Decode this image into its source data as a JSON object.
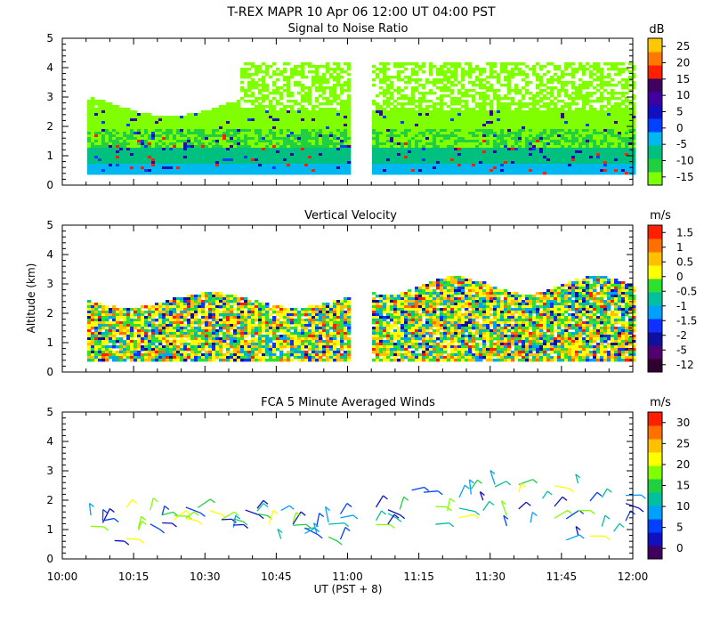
{
  "figure": {
    "title": "T-REX  MAPR 10 Apr 06   12:00 UT  04:00   PST",
    "x_axis_label": "UT  (PST + 8)",
    "y_axis_label": "Altitude (km)",
    "x_tick_labels": [
      "10:00",
      "10:15",
      "10:30",
      "10:45",
      "11:00",
      "11:15",
      "11:30",
      "11:45",
      "12:00"
    ],
    "y_tick_labels": [
      "0",
      "1",
      "2",
      "3",
      "4",
      "5"
    ]
  },
  "chart_data": [
    {
      "type": "heatmap",
      "title": "Signal to Noise Ratio",
      "unit": "dB",
      "xlim": [
        "10:00",
        "12:00"
      ],
      "ylim": [
        0,
        5
      ],
      "data_gap": [
        "11:00",
        "11:05"
      ],
      "colorbar": {
        "colors": [
          "#80ff00",
          "#20d040",
          "#00c080",
          "#00b8f0",
          "#0040ff",
          "#1010c0",
          "#4000a0",
          "#400060",
          "#ff2000",
          "#ff7800",
          "#ffc800"
        ],
        "labels": [
          "-15",
          "-10",
          "-5",
          "0",
          "5",
          "10",
          "15",
          "20",
          "25"
        ]
      }
    },
    {
      "type": "heatmap",
      "title": "Vertical Velocity",
      "unit": "m/s",
      "xlim": [
        "10:00",
        "12:00"
      ],
      "ylim": [
        0,
        5
      ],
      "data_gap": [
        "11:00",
        "11:05"
      ],
      "colorbar": {
        "colors": [
          "#300030",
          "#500070",
          "#1010a0",
          "#1030ff",
          "#00a0ff",
          "#00c0a0",
          "#30e030",
          "#ffff00",
          "#ffc000",
          "#ff7000",
          "#ff2000"
        ],
        "labels": [
          "-12",
          "-5",
          "-2",
          "-1.5",
          "-1",
          "-0.5",
          "0",
          "0.5",
          "1",
          "1.5"
        ]
      }
    },
    {
      "type": "scatter",
      "title": "FCA 5 Minute Averaged Winds",
      "unit": "m/s",
      "xlim": [
        "10:00",
        "12:00"
      ],
      "ylim": [
        0,
        5
      ],
      "colorbar": {
        "colors": [
          "#400060",
          "#1010c0",
          "#0040ff",
          "#00a0ff",
          "#00c0a0",
          "#20d040",
          "#80ff00",
          "#ffff00",
          "#ffc000",
          "#ff7000",
          "#ff2000"
        ],
        "labels": [
          "0",
          "5",
          "10",
          "15",
          "20",
          "25",
          "30"
        ]
      }
    }
  ]
}
